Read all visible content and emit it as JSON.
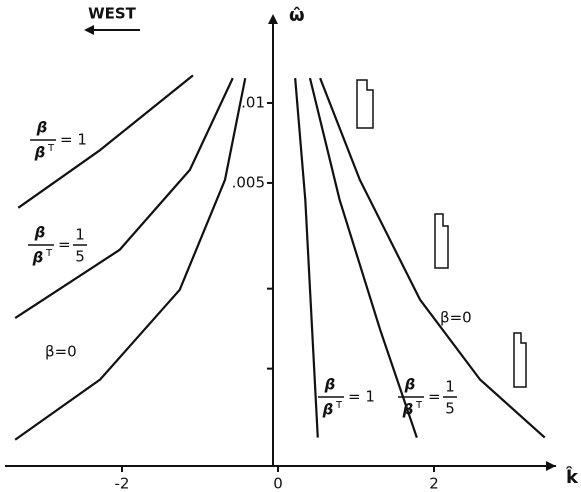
{
  "chart_data": {
    "type": "line",
    "x_label": "k̂",
    "y_label": "ω̂",
    "direction_label": "WEST",
    "log_y": true,
    "xlim": [
      -3.5,
      3.5
    ],
    "ylim": [
      0.00043,
      0.02
    ],
    "xticks": [
      -2,
      0,
      2
    ],
    "yticks": [
      {
        "value": 0.005,
        "label": ".005"
      },
      {
        "value": 0.01,
        "label": ".01"
      }
    ],
    "yticks_unlabeled": [
      0.001,
      0.002
    ],
    "series": [
      {
        "color": "#111111",
        "x": [
          -3.33,
          -2.28,
          -1.09
        ],
        "values": [
          0.00403,
          0.00665,
          0.0127
        ]
      },
      {
        "color": "#111111",
        "x": [
          -3.37,
          -2.03,
          -1.13,
          -0.58
        ],
        "values": [
          0.00155,
          0.0028,
          0.0056,
          0.0124
        ]
      },
      {
        "color": "#111111",
        "x": [
          -3.37,
          -2.28,
          -1.26,
          -0.68,
          -0.42
        ],
        "values": [
          0.00054,
          0.00091,
          0.00198,
          0.00513,
          0.0124
        ]
      },
      {
        "color": "#111111",
        "x": [
          0.22,
          0.35,
          0.51
        ],
        "values": [
          0.0124,
          0.00432,
          0.00055
        ]
      },
      {
        "color": "#111111",
        "x": [
          0.41,
          0.79,
          1.31,
          1.78
        ],
        "values": [
          0.0124,
          0.00432,
          0.0014,
          0.00055
        ]
      },
      {
        "color": "#111111",
        "x": [
          0.54,
          1.05,
          1.82,
          2.59,
          3.42
        ],
        "values": [
          0.0124,
          0.00513,
          0.00182,
          0.00091,
          0.00055
        ]
      }
    ],
    "annotations": [
      {
        "numerator": "β",
        "denominator": "β",
        "sup": "T",
        "rhs": "= 1"
      },
      {
        "numerator": "β",
        "denominator": "β",
        "sup": "T",
        "rhs": "=",
        "rhs_numerator": "1",
        "rhs_denominator": "5"
      },
      {
        "text": "β=0"
      },
      {
        "numerator": "β",
        "denominator": "β",
        "sup": "T",
        "rhs": "= 1"
      },
      {
        "numerator": "β",
        "denominator": "β",
        "sup": "T",
        "rhs": "=",
        "rhs_numerator": "1",
        "rhs_denominator": "5"
      },
      {
        "text": "β=0"
      }
    ]
  }
}
